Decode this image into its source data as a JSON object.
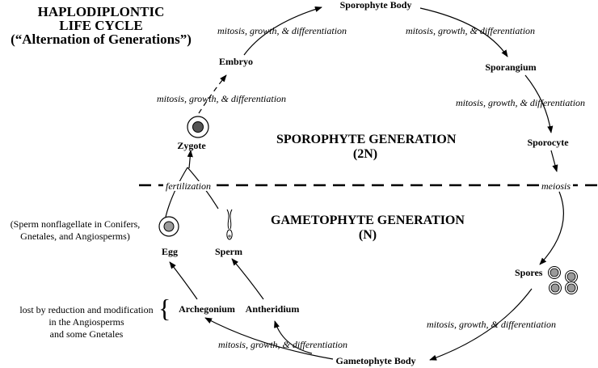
{
  "title": {
    "line1": "HAPLODIPLONTIC",
    "line2": "LIFE CYCLE",
    "line3": "(“Alternation of Generations”)"
  },
  "generations": {
    "sporophyte": {
      "name": "SPOROPHYTE GENERATION",
      "ploidy": "(2N)"
    },
    "gametophyte": {
      "name": "GAMETOPHYTE GENERATION",
      "ploidy": "(N)"
    }
  },
  "stages": {
    "sporophyte_body": "Sporophyte Body",
    "sporangium": "Sporangium",
    "sporocyte": "Sporocyte",
    "spores": "Spores",
    "gametophyte_body": "Gametophyte Body",
    "archegonium": "Archegonium",
    "antheridium": "Antheridium",
    "egg": "Egg",
    "sperm": "Sperm",
    "zygote": "Zygote",
    "embryo": "Embryo"
  },
  "processes": {
    "mgd": "mitosis, growth, & differentiation",
    "meiosis": "meiosis",
    "fertilization": "fertilization"
  },
  "notes": {
    "sperm_note_line1": "(Sperm nonflagellate in Conifers,",
    "sperm_note_line2": "Gnetales, and Angiosperms)",
    "lost_line1": "lost by reduction and modification",
    "lost_line2": "in the Angiosperms",
    "lost_line3": "and some Gnetales",
    "brace": "{"
  },
  "colors": {
    "line": "#000000",
    "cell_fill": "#9a9a9a",
    "zygote_nucleus": "#555555"
  }
}
